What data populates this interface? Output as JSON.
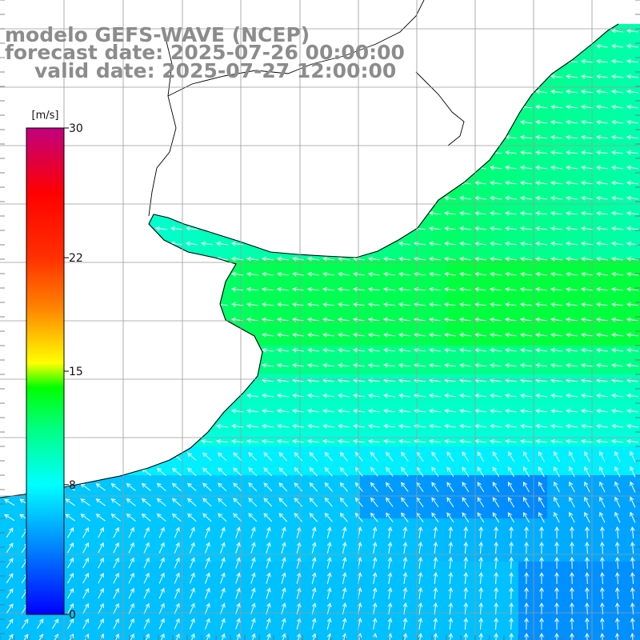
{
  "map": {
    "model_label": "modelo GEFS-WAVE (NCEP)",
    "forecast_label": "forecast date: 2025-07-26 00:00:00",
    "valid_label": "valid date: 2025-07-27 12:00:00",
    "variable": "wind speed and direction",
    "colors": {
      "land": "#ffffff",
      "coastline": "#000000",
      "grid": "#9a9a9a",
      "arrows": "#ffffff",
      "title_text": "#8c8c8c"
    }
  },
  "colorbar": {
    "unit_label": "[m/s]",
    "min": 0,
    "max": 30,
    "ticks": [
      {
        "value": 30,
        "label": "30"
      },
      {
        "value": 22,
        "label": "22"
      },
      {
        "value": 15,
        "label": "15"
      },
      {
        "value": 8,
        "label": "8"
      },
      {
        "value": 0,
        "label": "0"
      }
    ],
    "stops": [
      {
        "value": 0,
        "color": "#0000ff"
      },
      {
        "value": 4,
        "color": "#0080ff"
      },
      {
        "value": 8,
        "color": "#00ffff"
      },
      {
        "value": 11.5,
        "color": "#00ff80"
      },
      {
        "value": 14,
        "color": "#00ff00"
      },
      {
        "value": 15.5,
        "color": "#ffff00"
      },
      {
        "value": 19,
        "color": "#ff8000"
      },
      {
        "value": 22,
        "color": "#ff3000"
      },
      {
        "value": 26,
        "color": "#ff0000"
      },
      {
        "value": 30,
        "color": "#c0007f"
      }
    ]
  }
}
